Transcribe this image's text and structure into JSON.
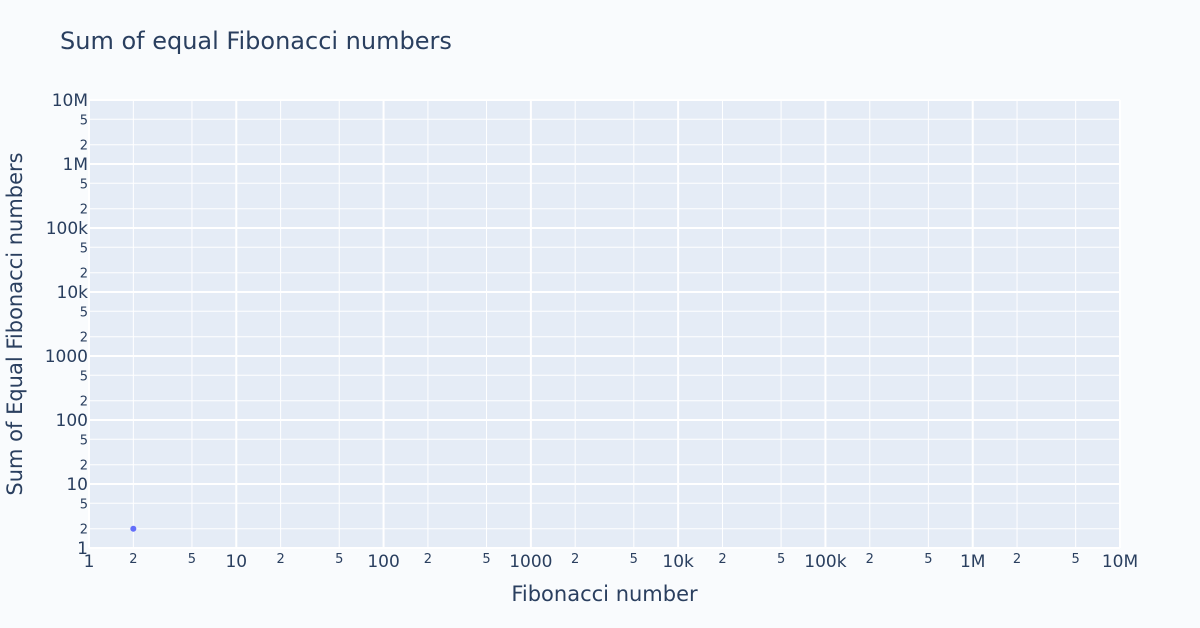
{
  "chart_data": {
    "type": "scatter",
    "title": "Sum of equal Fibonacci numbers",
    "xlabel": "Fibonacci number",
    "ylabel": "Sum of Equal Fibonacci numbers",
    "x_scale": "log",
    "y_scale": "log",
    "xlim": [
      1,
      10000000
    ],
    "ylim": [
      1,
      10000000
    ],
    "x_major_ticks": [
      {
        "value": 1,
        "label": "1"
      },
      {
        "value": 10,
        "label": "10"
      },
      {
        "value": 100,
        "label": "100"
      },
      {
        "value": 1000,
        "label": "1000"
      },
      {
        "value": 10000,
        "label": "10k"
      },
      {
        "value": 100000,
        "label": "100k"
      },
      {
        "value": 1000000,
        "label": "1M"
      },
      {
        "value": 10000000,
        "label": "10M"
      }
    ],
    "y_major_ticks": [
      {
        "value": 1,
        "label": "1"
      },
      {
        "value": 10,
        "label": "10"
      },
      {
        "value": 100,
        "label": "100"
      },
      {
        "value": 1000,
        "label": "1000"
      },
      {
        "value": 10000,
        "label": "10k"
      },
      {
        "value": 100000,
        "label": "100k"
      },
      {
        "value": 1000000,
        "label": "1M"
      },
      {
        "value": 10000000,
        "label": "10M"
      }
    ],
    "minor_tick_multipliers": [
      {
        "value": 2,
        "label": "2"
      },
      {
        "value": 5,
        "label": "5"
      }
    ],
    "grid": true,
    "points": [
      {
        "x": 2,
        "y": 2
      }
    ],
    "colors": {
      "marker": "#636efa",
      "plot_bg": "#e5ecf6",
      "paper_bg": "#f9fbfd",
      "grid": "#ffffff",
      "text": "#2a3f5f"
    }
  }
}
